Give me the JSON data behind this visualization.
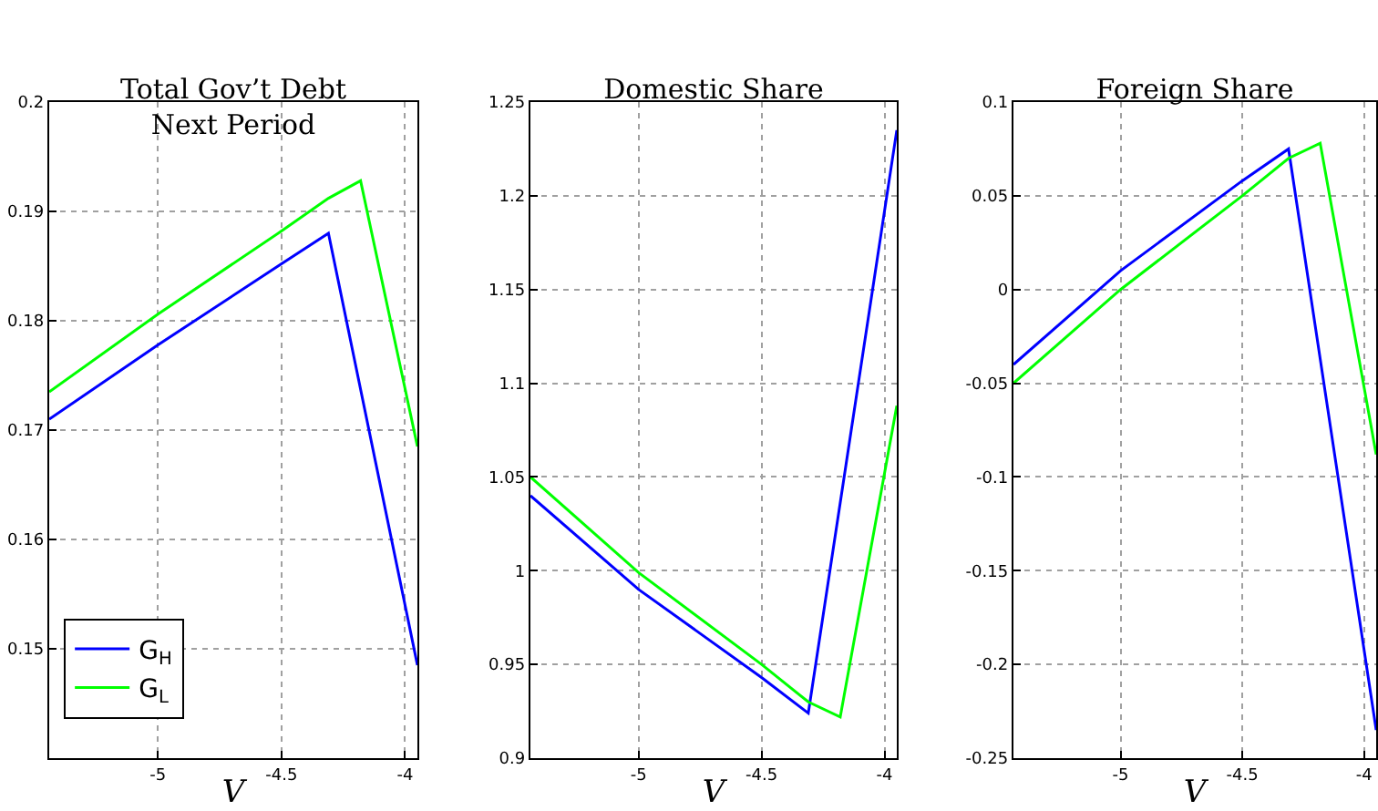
{
  "chart_data": [
    {
      "type": "line",
      "title": "Total Gov’t Debt\nNext Period",
      "xlabel": "V",
      "xlim": [
        -5.44,
        -3.95
      ],
      "xticks": [
        -5,
        -4.5,
        -4
      ],
      "ylim": [
        0.14,
        0.2
      ],
      "yticks": [
        0.15,
        0.16,
        0.17,
        0.18,
        0.19,
        0.2
      ],
      "grid": true,
      "legend": "bottom left",
      "series": [
        {
          "name": "G$_{H}$",
          "color": "#0000ff",
          "x": [
            -5.44,
            -5,
            -4.5,
            -4.31,
            -3.95
          ],
          "values": [
            0.171,
            0.1778,
            0.1852,
            0.188,
            0.1485
          ]
        },
        {
          "name": "G$_{L}$",
          "color": "#00ff00",
          "x": [
            -5.44,
            -5,
            -4.5,
            -4.31,
            -4.18,
            -3.95
          ],
          "values": [
            0.1735,
            0.1806,
            0.1882,
            0.1912,
            0.1928,
            0.1685
          ]
        }
      ]
    },
    {
      "type": "line",
      "title": "Domestic Share",
      "xlabel": "V",
      "xlim": [
        -5.44,
        -3.95
      ],
      "xticks": [
        -5,
        -4.5,
        -4
      ],
      "ylim": [
        0.9,
        1.25
      ],
      "yticks": [
        0.9,
        0.95,
        1,
        1.05,
        1.1,
        1.15,
        1.2,
        1.25
      ],
      "grid": true,
      "series": [
        {
          "color": "#0000ff",
          "x": [
            -5.44,
            -5,
            -4.5,
            -4.31,
            -3.95
          ],
          "values": [
            1.04,
            0.99,
            0.943,
            0.924,
            1.235
          ]
        },
        {
          "color": "#00ff00",
          "x": [
            -5.44,
            -5,
            -4.5,
            -4.31,
            -4.18,
            -3.95
          ],
          "values": [
            1.05,
            0.999,
            0.95,
            0.93,
            0.922,
            1.088
          ]
        }
      ]
    },
    {
      "type": "line",
      "title": "Foreign Share",
      "xlabel": "V",
      "xlim": [
        -5.44,
        -3.95
      ],
      "xticks": [
        -5,
        -4.5,
        -4
      ],
      "ylim": [
        -0.25,
        0.1
      ],
      "yticks": [
        -0.25,
        -0.2,
        -0.15,
        -0.1,
        -0.05,
        0,
        0.05,
        0.1
      ],
      "grid": true,
      "series": [
        {
          "color": "#0000ff",
          "x": [
            -5.44,
            -5,
            -4.5,
            -4.31,
            -3.95
          ],
          "values": [
            -0.04,
            0.01,
            0.058,
            0.075,
            -0.235
          ]
        },
        {
          "color": "#00ff00",
          "x": [
            -5.44,
            -5,
            -4.5,
            -4.31,
            -4.18,
            -3.95
          ],
          "values": [
            -0.05,
            0.0,
            0.05,
            0.07,
            0.078,
            -0.088
          ]
        }
      ]
    }
  ]
}
